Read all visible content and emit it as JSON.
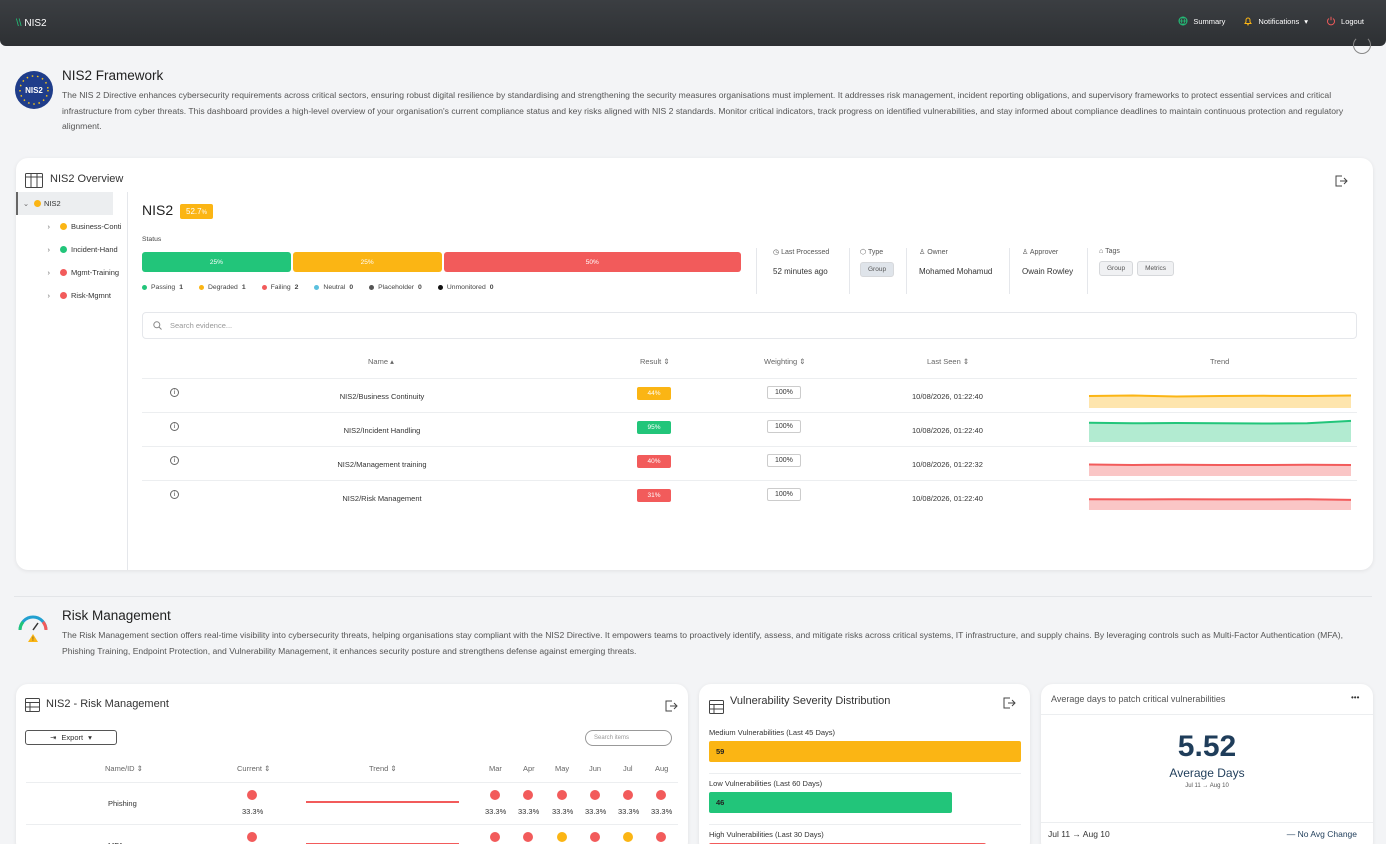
{
  "topbar": {
    "brand": "NIS2",
    "summary": "Summary",
    "notifications": "Notifications",
    "logout": "Logout"
  },
  "framework": {
    "logo_text": "NIS2",
    "title": "NIS2 Framework",
    "description": "The NIS 2 Directive enhances cybersecurity requirements across critical sectors, ensuring robust digital resilience by standardising and strengthening the security measures organisations must implement. It addresses risk management, incident reporting obligations, and supervisory frameworks to protect essential services and critical infrastructure from cyber threats. This dashboard provides a high-level overview of your organisation's current compliance status and key risks aligned with NIS 2 standards. Monitor critical indicators, track progress on identified vulnerabilities, and stay informed about compliance deadlines to maintain continuous protection and regulatory alignment."
  },
  "overview": {
    "title": "NIS2 Overview",
    "tree": [
      {
        "label": "NIS2",
        "color": "#fbb514"
      },
      {
        "label": "Business-Conti",
        "color": "#fbb514"
      },
      {
        "label": "Incident-Hand",
        "color": "#22c57a"
      },
      {
        "label": "Mgmt-Training",
        "color": "#f25b5b"
      },
      {
        "label": "Risk-Mgmnt",
        "color": "#f25b5b"
      }
    ],
    "name": "NIS2",
    "score": "52.7",
    "score_unit": "%",
    "status_label": "Status",
    "status_bar": [
      {
        "label": "25%",
        "value": 25,
        "color": "#22c57a"
      },
      {
        "label": "25%",
        "value": 25,
        "color": "#fbb514"
      },
      {
        "label": "50%",
        "value": 50,
        "color": "#f25b5b"
      }
    ],
    "legend": [
      {
        "label": "Passing",
        "count": "1",
        "color": "#22c57a"
      },
      {
        "label": "Degraded",
        "count": "1",
        "color": "#fbb514"
      },
      {
        "label": "Failing",
        "count": "2",
        "color": "#f25b5b"
      },
      {
        "label": "Neutral",
        "count": "0",
        "color": "#5bc0de"
      },
      {
        "label": "Placeholder",
        "count": "0",
        "color": "#555555"
      },
      {
        "label": "Unmonitored",
        "count": "0",
        "color": "#111111"
      }
    ],
    "meta": {
      "last_processed_label": "Last Processed",
      "last_processed": "52 minutes ago",
      "type_label": "Type",
      "type": "Group",
      "owner_label": "Owner",
      "owner": "Mohamed Mohamud",
      "approver_label": "Approver",
      "approver": "Owain Rowley",
      "tags_label": "Tags",
      "tags": [
        "Group",
        "Metrics"
      ]
    },
    "search_placeholder": "Search evidence...",
    "columns": {
      "name": "Name",
      "result": "Result",
      "weighting": "Weighting",
      "last_seen": "Last Seen",
      "trend": "Trend"
    },
    "rows": [
      {
        "name": "NIS2/Business Continuity",
        "result": "44%",
        "color": "#fbb514",
        "weight": "100%",
        "last_seen": "10/08/2026, 01:22:40"
      },
      {
        "name": "NIS2/Incident Handling",
        "result": "95%",
        "color": "#22c57a",
        "weight": "100%",
        "last_seen": "10/08/2026, 01:22:40"
      },
      {
        "name": "NIS2/Management training",
        "result": "40%",
        "color": "#f25b5b",
        "weight": "100%",
        "last_seen": "10/08/2026, 01:22:32"
      },
      {
        "name": "NIS2/Risk Management",
        "result": "31%",
        "color": "#f25b5b",
        "weight": "100%",
        "last_seen": "10/08/2026, 01:22:40"
      }
    ]
  },
  "risk": {
    "title": "Risk Management",
    "description": "The Risk Management section offers real-time visibility into cybersecurity threats, helping organisations stay compliant with the NIS2 Directive. It empowers teams to proactively identify, assess, and mitigate risks across critical systems, IT infrastructure, and supply chains. By leveraging controls such as Multi-Factor Authentication (MFA), Phishing Training, Endpoint Protection, and Vulnerability Management, it enhances security posture and strengthens defense against emerging threats."
  },
  "rm_table": {
    "title": "NIS2 - Risk Management",
    "export": "Export",
    "search_placeholder": "Search items",
    "columns": [
      "Name/ID",
      "Current",
      "Trend",
      "Mar",
      "Apr",
      "May",
      "Jun",
      "Jul",
      "Aug"
    ],
    "rows": [
      {
        "name": "Phishing",
        "current": "33.3%",
        "months": [
          "33.3%",
          "33.3%",
          "33.3%",
          "33.3%",
          "33.3%",
          "33.3%"
        ],
        "colors": [
          "#f25b5b",
          "#f25b5b",
          "#f25b5b",
          "#f25b5b",
          "#f25b5b",
          "#f25b5b"
        ]
      },
      {
        "name": "MFA",
        "current": "",
        "months": [
          "",
          "",
          "",
          "",
          "",
          ""
        ],
        "colors": [
          "#f25b5b",
          "#f25b5b",
          "#fbb514",
          "#f25b5b",
          "#fbb514",
          "#f25b5b"
        ]
      }
    ]
  },
  "vuln": {
    "title": "Vulnerability Severity Distribution",
    "bars": [
      {
        "label": "Medium Vulnerabilities (Last 45 Days)",
        "value": 59,
        "color": "#fbb514"
      },
      {
        "label": "Low Vulnerabilities (Last 60 Days)",
        "value": 46,
        "color": "#22c57a"
      },
      {
        "label": "High Vulnerabilities (Last 30 Days)",
        "value": 0,
        "color": "#f25b5b"
      }
    ],
    "max": 59
  },
  "patch": {
    "title": "Average days to patch critical vulnerabilities",
    "value": "5.52",
    "unit": "Average Days",
    "range": "Jul 11 → Aug 10",
    "footer_range": "Jul 11 → Aug 10",
    "change": "— No Avg Change",
    "menu": "•••"
  }
}
